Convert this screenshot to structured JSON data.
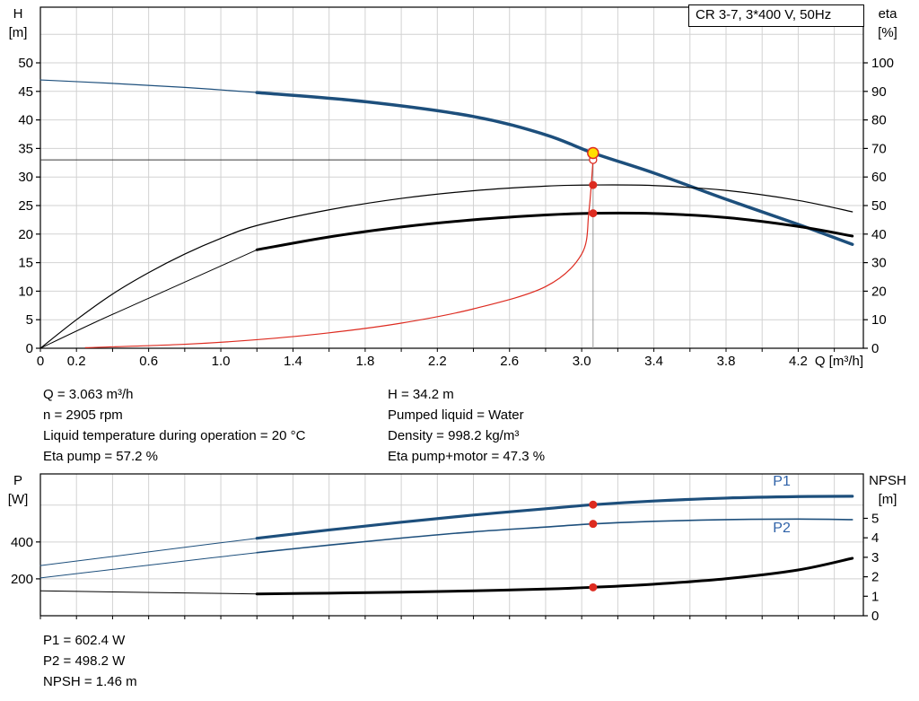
{
  "annotations": {
    "q": "Q = 3.063 m³/h",
    "n": "n = 2905 rpm",
    "temp": "Liquid temperature during operation = 20 °C",
    "eta_pump": "Eta pump = 57.2 %",
    "h": "H = 34.2 m",
    "liquid": "Pumped liquid = Water",
    "density": "Density = 998.2 kg/m³",
    "eta_total": "Eta pump+motor = 47.3 %",
    "p1": "P1 = 602.4 W",
    "p2": "P2 = 498.2 W",
    "npsh": "NPSH = 1.46 m"
  },
  "colors": {
    "curve_blue": "#1d4f7c",
    "curve_black": "#000000",
    "red": "#dd2b20",
    "yellow": "#ffdf00",
    "grid": "#d2d2d2",
    "label_blue": "#2f62a8",
    "guide_gray": "#999999",
    "guide_dark": "#3a3a3a"
  },
  "chart_data": [
    {
      "type": "line",
      "name": "qh-eta-chart",
      "title": "CR 3-7, 3*400 V, 50Hz",
      "grid_color": "#d2d2d2",
      "x_axis": {
        "label": "Q [m³/h]",
        "min": 0,
        "max": 4.561,
        "grid_step": 0.2,
        "labels": [
          {
            "q": 0,
            "t": "0"
          },
          {
            "q": 0.2,
            "t": "0.2"
          },
          {
            "q": 0.6,
            "t": "0.6"
          },
          {
            "q": 1.0,
            "t": "1.0"
          },
          {
            "q": 1.4,
            "t": "1.4"
          },
          {
            "q": 1.8,
            "t": "1.8"
          },
          {
            "q": 2.2,
            "t": "2.2"
          },
          {
            "q": 2.6,
            "t": "2.6"
          },
          {
            "q": 3.0,
            "t": "3.0"
          },
          {
            "q": 3.4,
            "t": "3.4"
          },
          {
            "q": 3.8,
            "t": "3.8"
          },
          {
            "q": 4.2,
            "t": "4.2"
          }
        ]
      },
      "left_axis": {
        "key": "H",
        "label": "H",
        "unit": "[m]",
        "min": 0,
        "max": 59.75,
        "ticks": [
          0,
          5,
          10,
          15,
          20,
          25,
          30,
          35,
          40,
          45,
          50
        ]
      },
      "right_axis": {
        "key": "eta",
        "label": "eta",
        "unit": "[%]",
        "min": 0,
        "max": 119.5,
        "ticks": [
          0,
          10,
          20,
          30,
          40,
          50,
          60,
          70,
          80,
          90,
          100
        ]
      },
      "grid_y": {
        "axis": "H",
        "values": [
          5,
          10,
          15,
          20,
          25,
          30,
          35,
          40,
          45,
          50,
          55
        ]
      },
      "guides": [
        {
          "name": "duty-flow-vline",
          "kind": "v",
          "q": 3.063,
          "axis": "H",
          "v1": 0,
          "v2": 34.2,
          "color": "#999999",
          "w": 1
        },
        {
          "name": "duty-head-hline",
          "kind": "h",
          "axis": "H",
          "v": 33,
          "q1": 0,
          "q2": 3.063,
          "color": "#3a3a3a",
          "w": 1
        }
      ],
      "series": [
        {
          "name": "h-curve-extension",
          "axis": "H",
          "color": "#1d4f7c",
          "width": 1.2,
          "points": [
            [
              0,
              47.0
            ],
            [
              0.4,
              46.4
            ],
            [
              0.8,
              45.7
            ],
            [
              1.2,
              44.8
            ]
          ]
        },
        {
          "name": "h-curve",
          "axis": "H",
          "color": "#1d4f7c",
          "width": 3.5,
          "points": [
            [
              1.2,
              44.8
            ],
            [
              1.8,
              43.2
            ],
            [
              2.4,
              40.6
            ],
            [
              2.8,
              37.4
            ],
            [
              3.063,
              34.2
            ],
            [
              3.4,
              30.7
            ],
            [
              3.8,
              26.1
            ],
            [
              4.2,
              21.7
            ],
            [
              4.5,
              18.2
            ]
          ]
        },
        {
          "name": "eta-pump-curve",
          "axis": "eta",
          "color": "#000000",
          "width": 1.2,
          "points": [
            [
              0,
              0
            ],
            [
              0.2,
              10
            ],
            [
              0.4,
              19
            ],
            [
              0.6,
              26.5
            ],
            [
              0.8,
              33
            ],
            [
              1.0,
              38.5
            ],
            [
              1.2,
              43
            ],
            [
              1.6,
              48.5
            ],
            [
              2.0,
              52.5
            ],
            [
              2.4,
              55.2
            ],
            [
              2.8,
              56.8
            ],
            [
              3.063,
              57.2
            ],
            [
              3.4,
              57.0
            ],
            [
              3.8,
              55.3
            ],
            [
              4.2,
              51.8
            ],
            [
              4.5,
              47.8
            ]
          ]
        },
        {
          "name": "eta-pump-motor-extension",
          "axis": "eta",
          "color": "#000000",
          "width": 1,
          "points": [
            [
              0,
              0
            ],
            [
              0.3,
              9
            ],
            [
              0.6,
              17.5
            ],
            [
              0.9,
              26
            ],
            [
              1.2,
              34.5
            ]
          ]
        },
        {
          "name": "eta-pump-motor-curve",
          "axis": "eta",
          "color": "#000000",
          "width": 3,
          "points": [
            [
              1.2,
              34.5
            ],
            [
              1.6,
              39
            ],
            [
              2.0,
              42.5
            ],
            [
              2.4,
              45
            ],
            [
              2.8,
              46.7
            ],
            [
              3.063,
              47.3
            ],
            [
              3.4,
              47.2
            ],
            [
              3.8,
              45.8
            ],
            [
              4.2,
              42.7
            ],
            [
              4.5,
              39.3
            ]
          ]
        },
        {
          "name": "system-curve",
          "axis": "H",
          "color": "#dd2b20",
          "width": 1.2,
          "points": [
            [
              0.25,
              0.1
            ],
            [
              0.8,
              0.7
            ],
            [
              1.2,
              1.5
            ],
            [
              1.6,
              2.7
            ],
            [
              2.0,
              4.4
            ],
            [
              2.4,
              6.9
            ],
            [
              2.8,
              10.8
            ],
            [
              3.0,
              16.5
            ],
            [
              3.04,
              24
            ],
            [
              3.063,
              33
            ]
          ]
        }
      ],
      "markers": [
        {
          "name": "required-duty-marker",
          "q": 3.063,
          "axis": "H",
          "v": 33,
          "r": 4,
          "fill": "#ffffff",
          "stroke": "#dd2b20",
          "sw": 1.3,
          "interactable": true
        },
        {
          "name": "eta-pump-duty-dot",
          "q": 3.063,
          "axis": "eta",
          "v": 57.2,
          "r": 4.5,
          "fill": "#dd2b20",
          "stroke": "none",
          "sw": 0,
          "interactable": false
        },
        {
          "name": "eta-pump-motor-duty-dot",
          "q": 3.063,
          "axis": "eta",
          "v": 47.3,
          "r": 4.5,
          "fill": "#dd2b20",
          "stroke": "none",
          "sw": 0,
          "interactable": false
        },
        {
          "name": "duty-point-marker",
          "q": 3.063,
          "axis": "H",
          "v": 34.2,
          "r": 6,
          "fill": "#ffdf00",
          "stroke": "#dd2b20",
          "sw": 1.5,
          "interactable": true
        }
      ],
      "labels": []
    },
    {
      "type": "line",
      "name": "power-npsh-chart",
      "title": "",
      "grid_color": "#d2d2d2",
      "x_axis": {
        "label": "",
        "min": 0,
        "max": 4.561,
        "grid_step": 0.2,
        "labels": []
      },
      "left_axis": {
        "key": "P",
        "label": "P",
        "unit": "[W]",
        "min": 0,
        "max": 769,
        "ticks": [
          200,
          400
        ]
      },
      "right_axis": {
        "key": "NPSH",
        "label": "NPSH",
        "unit": "[m]",
        "min": 0,
        "max": 7.28,
        "ticks": [
          0,
          1,
          2,
          3,
          4,
          5
        ]
      },
      "grid_y": {
        "axis": "P",
        "values": [
          200,
          400,
          600
        ]
      },
      "guides": [],
      "series": [
        {
          "name": "p1-curve-extension",
          "axis": "P",
          "color": "#1d4f7c",
          "width": 1,
          "points": [
            [
              0,
              272
            ],
            [
              0.4,
              321
            ],
            [
              0.8,
              371
            ],
            [
              1.2,
              420
            ]
          ]
        },
        {
          "name": "p1-curve",
          "axis": "P",
          "color": "#1d4f7c",
          "width": 3.2,
          "points": [
            [
              1.2,
              420
            ],
            [
              1.6,
              465
            ],
            [
              2.0,
              507
            ],
            [
              2.4,
              546
            ],
            [
              2.8,
              580
            ],
            [
              3.063,
              602
            ],
            [
              3.4,
              622
            ],
            [
              3.8,
              638
            ],
            [
              4.2,
              646
            ],
            [
              4.5,
              648
            ]
          ]
        },
        {
          "name": "p2-curve-extension",
          "axis": "P",
          "color": "#1d4f7c",
          "width": 1,
          "points": [
            [
              0,
              205
            ],
            [
              0.4,
              251
            ],
            [
              0.8,
              297
            ],
            [
              1.2,
              342
            ]
          ]
        },
        {
          "name": "p2-curve",
          "axis": "P",
          "color": "#1d4f7c",
          "width": 1.6,
          "points": [
            [
              1.2,
              342
            ],
            [
              1.6,
              383
            ],
            [
              2.0,
              421
            ],
            [
              2.4,
              455
            ],
            [
              2.8,
              481
            ],
            [
              3.063,
              498
            ],
            [
              3.4,
              512
            ],
            [
              3.8,
              521
            ],
            [
              4.2,
              524
            ],
            [
              4.5,
              521
            ]
          ]
        },
        {
          "name": "npsh-curve-extension",
          "axis": "NPSH",
          "color": "#000000",
          "width": 1,
          "points": [
            [
              0,
              1.28
            ],
            [
              0.4,
              1.22
            ],
            [
              0.8,
              1.17
            ],
            [
              1.2,
              1.12
            ]
          ]
        },
        {
          "name": "npsh-curve",
          "axis": "NPSH",
          "color": "#000000",
          "width": 3,
          "points": [
            [
              1.2,
              1.12
            ],
            [
              1.6,
              1.16
            ],
            [
              2.0,
              1.21
            ],
            [
              2.4,
              1.28
            ],
            [
              2.8,
              1.37
            ],
            [
              3.063,
              1.46
            ],
            [
              3.4,
              1.62
            ],
            [
              3.8,
              1.9
            ],
            [
              4.2,
              2.35
            ],
            [
              4.5,
              2.95
            ]
          ]
        }
      ],
      "markers": [
        {
          "name": "p1-duty-dot",
          "q": 3.063,
          "axis": "P",
          "v": 602.4,
          "r": 4.5,
          "fill": "#dd2b20",
          "stroke": "none",
          "sw": 0,
          "interactable": false
        },
        {
          "name": "p2-duty-dot",
          "q": 3.063,
          "axis": "P",
          "v": 498.2,
          "r": 4.5,
          "fill": "#dd2b20",
          "stroke": "none",
          "sw": 0,
          "interactable": false
        },
        {
          "name": "npsh-duty-dot",
          "q": 3.063,
          "axis": "NPSH",
          "v": 1.46,
          "r": 4.5,
          "fill": "#dd2b20",
          "stroke": "none",
          "sw": 0,
          "interactable": false
        }
      ],
      "labels": [
        {
          "name": "p1-series-label",
          "text": "P1",
          "q": 4.06,
          "axis": "P",
          "v": 705,
          "color": "#2f62a8",
          "size": 16
        },
        {
          "name": "p2-series-label",
          "text": "P2",
          "q": 4.06,
          "axis": "P",
          "v": 452,
          "color": "#2f62a8",
          "size": 16
        }
      ]
    }
  ]
}
